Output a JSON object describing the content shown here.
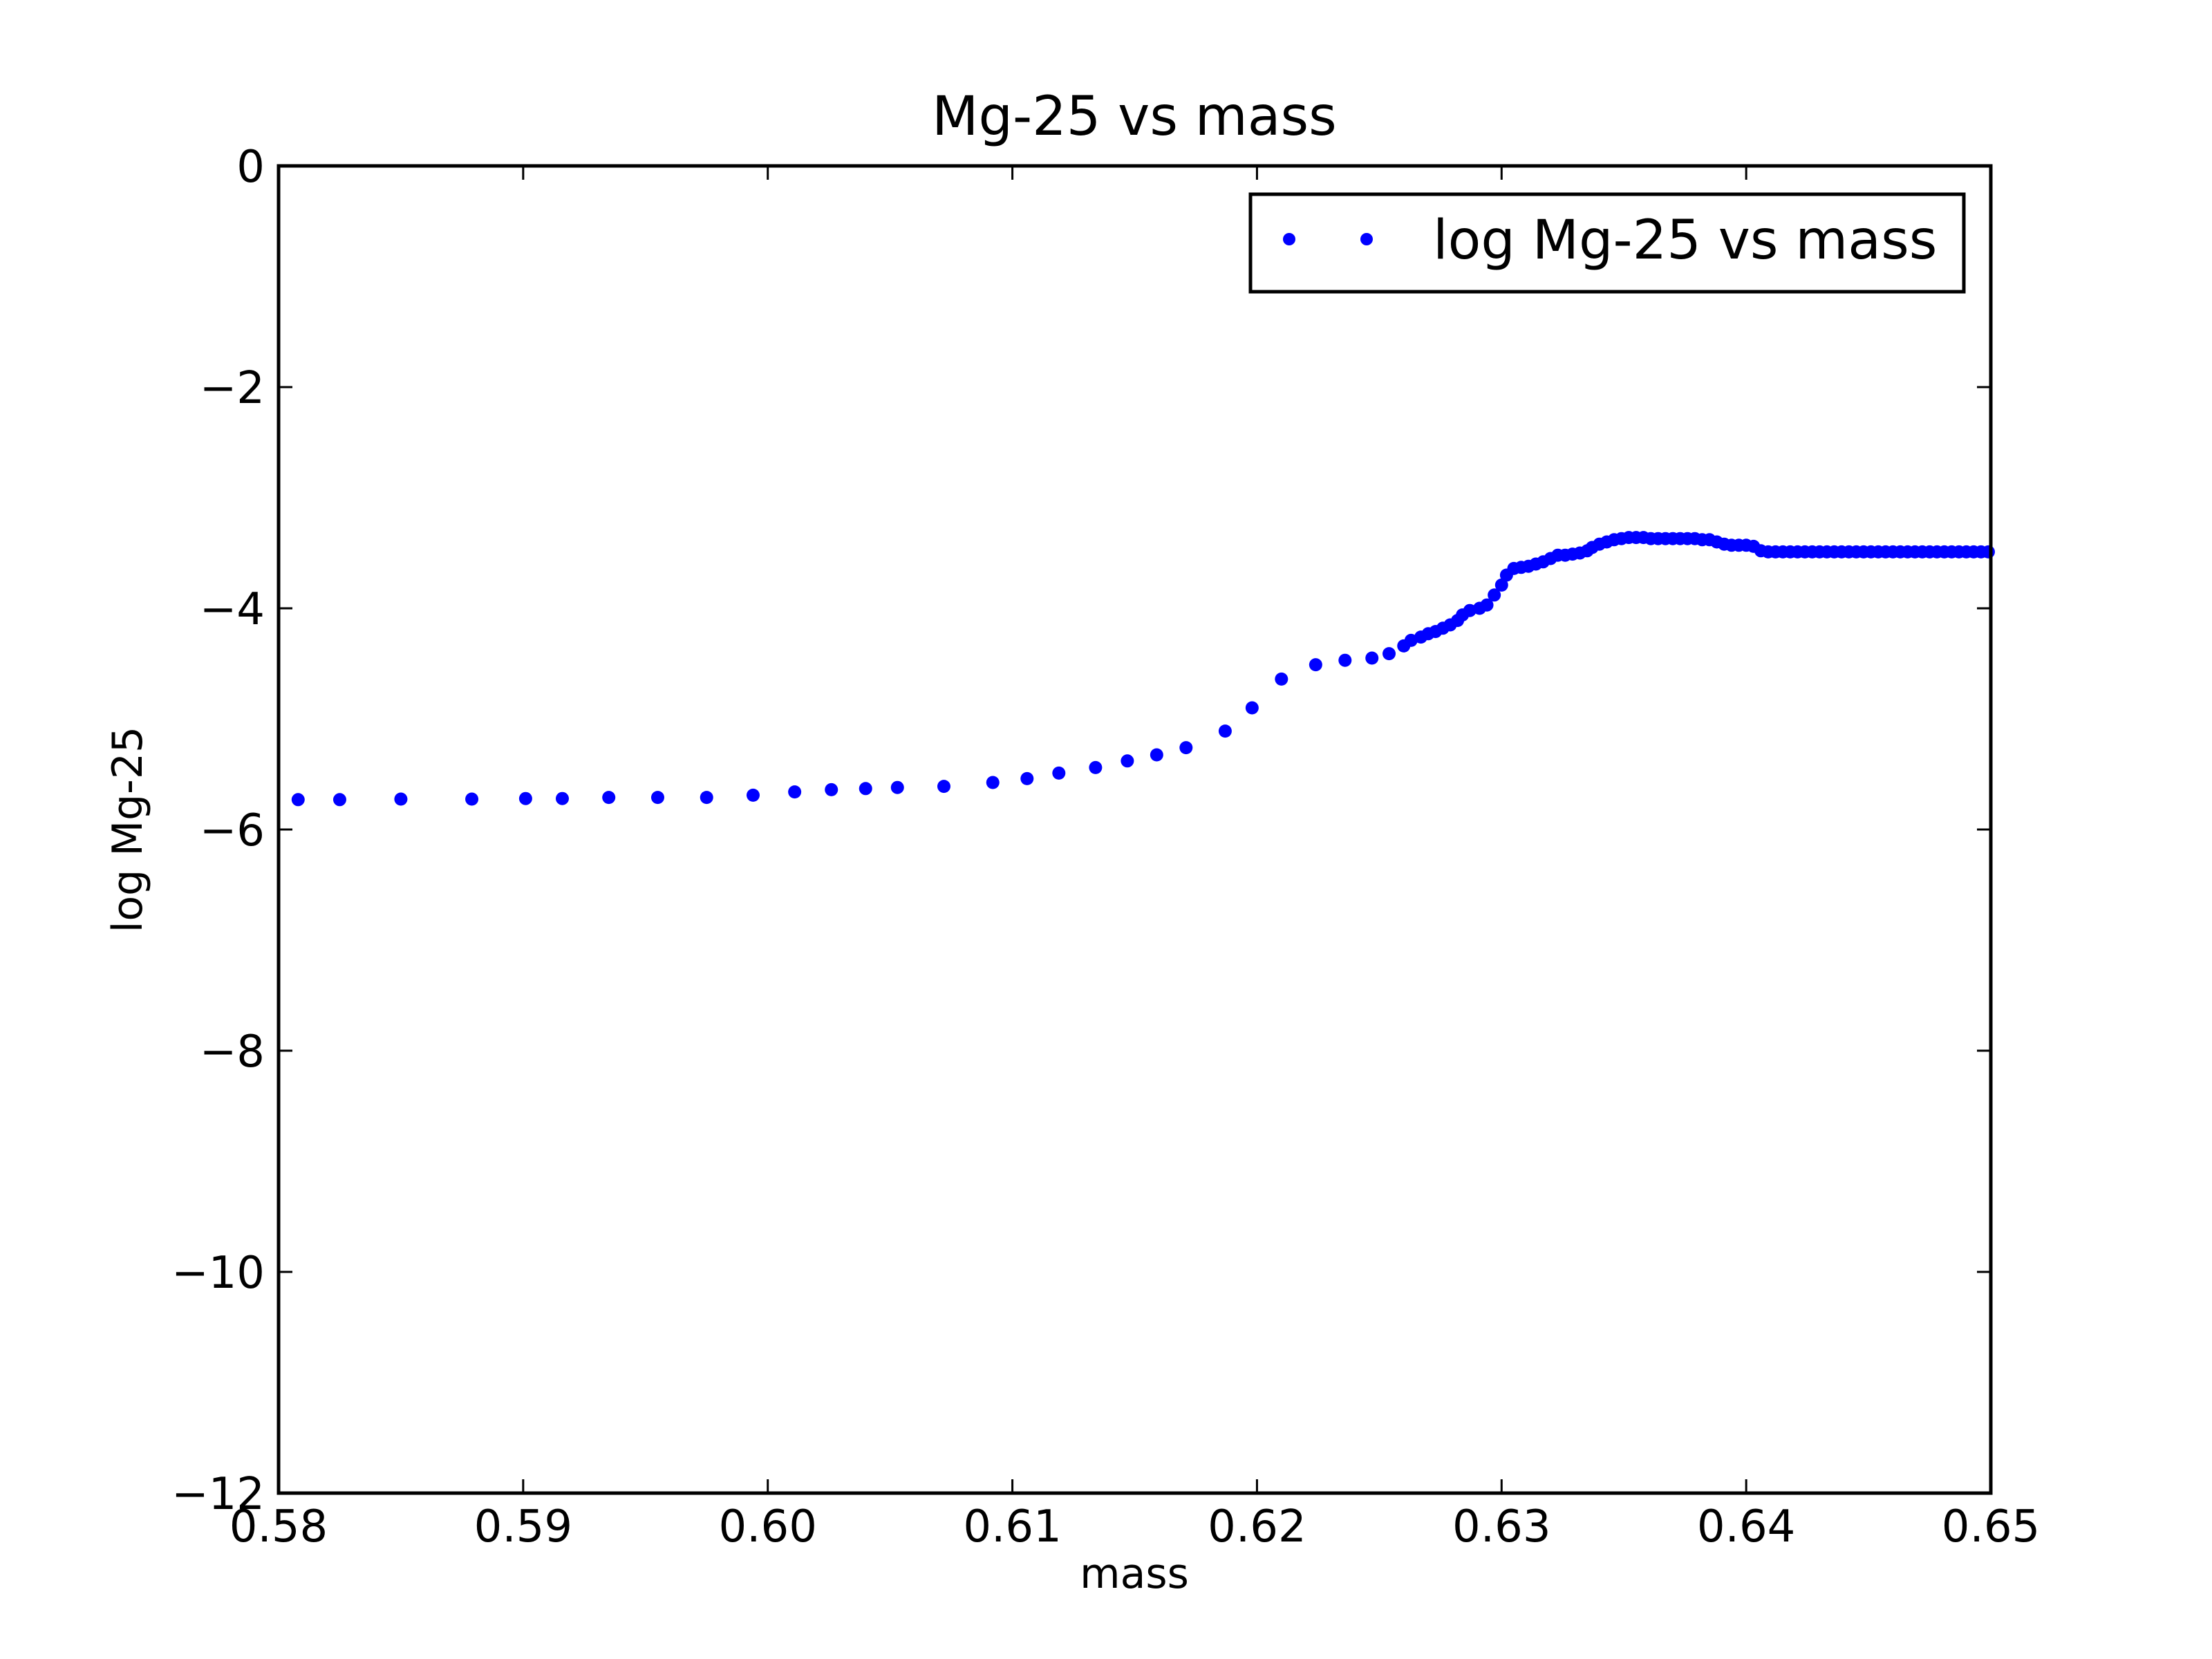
{
  "chart_data": {
    "type": "scatter",
    "title": "Mg-25 vs mass",
    "xlabel": "mass",
    "ylabel": "log Mg-25",
    "xlim": [
      0.58,
      0.65
    ],
    "ylim": [
      -12,
      0
    ],
    "xticks": [
      0.58,
      0.59,
      0.6,
      0.61,
      0.62,
      0.63,
      0.64,
      0.65
    ],
    "xtick_labels": [
      "0.58",
      "0.59",
      "0.60",
      "0.61",
      "0.62",
      "0.63",
      "0.64",
      "0.65"
    ],
    "yticks": [
      0,
      -2,
      -4,
      -6,
      -8,
      -10,
      -12
    ],
    "ytick_labels": [
      "0",
      "−2",
      "−4",
      "−6",
      "−8",
      "−10",
      "−12"
    ],
    "grid": false,
    "legend": {
      "placement": "top-right",
      "entries": [
        "log Mg-25 vs mass"
      ]
    },
    "series": [
      {
        "name": "log Mg-25 vs mass",
        "color": "#0000ff",
        "marker": "circle",
        "x": [
          0.5808,
          0.5825,
          0.585,
          0.5879,
          0.5901,
          0.5916,
          0.5935,
          0.5955,
          0.5975,
          0.5994,
          0.6011,
          0.6026,
          0.604,
          0.6053,
          0.6072,
          0.6092,
          0.6106,
          0.6119,
          0.6134,
          0.6147,
          0.6159,
          0.6171,
          0.6187,
          0.6198,
          0.621,
          0.6224,
          0.6236,
          0.6247,
          0.6254,
          0.626,
          0.6263,
          0.6267,
          0.627,
          0.6273,
          0.6276,
          0.6279,
          0.6282,
          0.6284,
          0.6287,
          0.6291,
          0.6294,
          0.6297,
          0.63,
          0.6302,
          0.6305,
          0.6308,
          0.6311,
          0.6314,
          0.6317,
          0.632,
          0.6323,
          0.6326,
          0.6329,
          0.6332,
          0.6335,
          0.6337,
          0.634,
          0.6343,
          0.6346,
          0.6349,
          0.6352,
          0.6355,
          0.6358,
          0.6361,
          0.6364,
          0.6367,
          0.637,
          0.6373,
          0.6376,
          0.6379,
          0.6382,
          0.6385,
          0.6388,
          0.6391,
          0.6394,
          0.6397,
          0.64,
          0.6403,
          0.6406,
          0.6409,
          0.6412,
          0.6415,
          0.6418,
          0.6421,
          0.6424,
          0.6427,
          0.643,
          0.6433,
          0.6436,
          0.6439,
          0.6442,
          0.6445,
          0.6448,
          0.6451,
          0.6454,
          0.6457,
          0.646,
          0.6463,
          0.6466,
          0.6469,
          0.6472,
          0.6475,
          0.6478,
          0.6481,
          0.6484,
          0.6487,
          0.649,
          0.6493,
          0.6496,
          0.6499
        ],
        "y": [
          -5.73,
          -5.73,
          -5.725,
          -5.725,
          -5.72,
          -5.72,
          -5.71,
          -5.71,
          -5.71,
          -5.69,
          -5.66,
          -5.64,
          -5.63,
          -5.62,
          -5.61,
          -5.575,
          -5.54,
          -5.49,
          -5.44,
          -5.38,
          -5.325,
          -5.26,
          -5.11,
          -4.9,
          -4.64,
          -4.51,
          -4.47,
          -4.45,
          -4.41,
          -4.34,
          -4.29,
          -4.26,
          -4.23,
          -4.21,
          -4.18,
          -4.15,
          -4.11,
          -4.06,
          -4.02,
          -4.0,
          -3.97,
          -3.88,
          -3.79,
          -3.7,
          -3.64,
          -3.63,
          -3.62,
          -3.6,
          -3.58,
          -3.55,
          -3.52,
          -3.52,
          -3.51,
          -3.5,
          -3.48,
          -3.45,
          -3.42,
          -3.4,
          -3.38,
          -3.37,
          -3.36,
          -3.36,
          -3.36,
          -3.37,
          -3.37,
          -3.37,
          -3.37,
          -3.37,
          -3.37,
          -3.37,
          -3.38,
          -3.38,
          -3.4,
          -3.42,
          -3.43,
          -3.43,
          -3.43,
          -3.44,
          -3.48,
          -3.49,
          -3.49,
          -3.49,
          -3.49,
          -3.49,
          -3.49,
          -3.49,
          -3.49,
          -3.49,
          -3.49,
          -3.49,
          -3.49,
          -3.49,
          -3.49,
          -3.49,
          -3.49,
          -3.49,
          -3.49,
          -3.49,
          -3.49,
          -3.49,
          -3.49,
          -3.49,
          -3.49,
          -3.49,
          -3.49,
          -3.49,
          -3.49,
          -3.49,
          -3.49,
          -3.49
        ]
      }
    ]
  }
}
